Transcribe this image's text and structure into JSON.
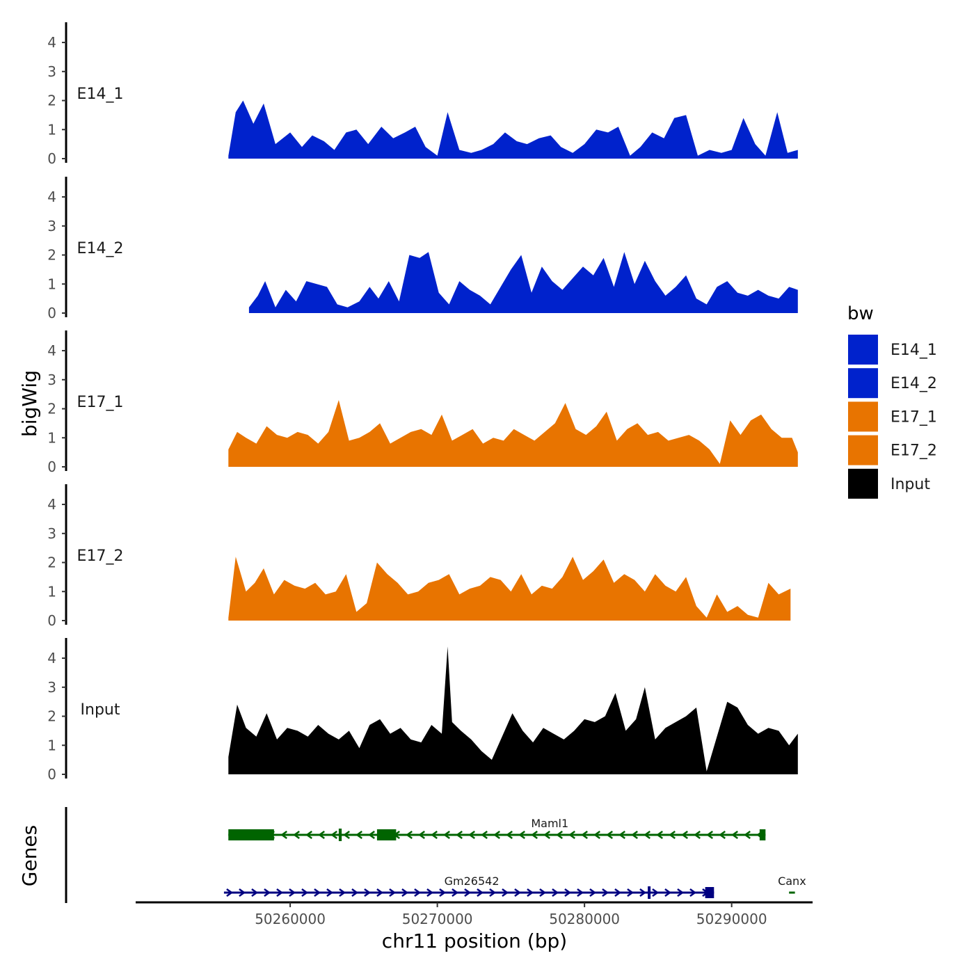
{
  "chart_data": {
    "type": "area",
    "title": "",
    "ylabel": "bigWig",
    "genes_label": "Genes",
    "xlabel": "chr11 position (bp)",
    "xlim": [
      50249500,
      50295500
    ],
    "ylim": [
      0,
      4.6
    ],
    "y_ticks": [
      0,
      1,
      2,
      3,
      4
    ],
    "x_ticks": [
      50260000,
      50270000,
      50280000,
      50290000
    ],
    "x_tick_labels": [
      "50260000",
      "50270000",
      "50280000",
      "50290000"
    ],
    "legend": {
      "title": "bw",
      "placement": "right",
      "entries": [
        {
          "label": "E14_1",
          "color": "#0022CC"
        },
        {
          "label": "E14_2",
          "color": "#0022CC"
        },
        {
          "label": "E17_1",
          "color": "#E87400"
        },
        {
          "label": "E17_2",
          "color": "#E87400"
        },
        {
          "label": "Input",
          "color": "#000000"
        }
      ]
    },
    "series": [
      {
        "name": "E14_1",
        "color": "#0022CC",
        "x": [
          50255800,
          50256300,
          50256800,
          50257500,
          50258200,
          50259000,
          50260000,
          50260800,
          50261500,
          50262300,
          50263000,
          50263800,
          50264500,
          50265300,
          50266200,
          50267000,
          50267800,
          50268500,
          50269200,
          50270000,
          50270700,
          50271500,
          50272300,
          50273000,
          50273800,
          50274600,
          50275400,
          50276100,
          50276900,
          50277700,
          50278400,
          50279200,
          50280000,
          50280800,
          50281600,
          50282300,
          50283100,
          50283800,
          50284600,
          50285400,
          50286100,
          50286900,
          50287700,
          50288500,
          50289300,
          50290000,
          50290800,
          50291600,
          50292300,
          50293100,
          50293800,
          50294500
        ],
        "values": [
          0.1,
          1.6,
          2.0,
          1.2,
          1.9,
          0.5,
          0.9,
          0.4,
          0.8,
          0.6,
          0.3,
          0.9,
          1.0,
          0.5,
          1.1,
          0.7,
          0.9,
          1.1,
          0.4,
          0.1,
          1.6,
          0.3,
          0.2,
          0.3,
          0.5,
          0.9,
          0.6,
          0.5,
          0.7,
          0.8,
          0.4,
          0.2,
          0.5,
          1.0,
          0.9,
          1.1,
          0.1,
          0.4,
          0.9,
          0.7,
          1.4,
          1.5,
          0.1,
          0.3,
          0.2,
          0.3,
          1.4,
          0.5,
          0.1,
          1.6,
          0.2,
          0.3
        ]
      },
      {
        "name": "E14_2",
        "color": "#0022CC",
        "x": [
          50257200,
          50257800,
          50258300,
          50259000,
          50259700,
          50260400,
          50261100,
          50261800,
          50262500,
          50263200,
          50263900,
          50264700,
          50265400,
          50266000,
          50266700,
          50267400,
          50268100,
          50268800,
          50269400,
          50270100,
          50270800,
          50271500,
          50272200,
          50272900,
          50273600,
          50274300,
          50275000,
          50275700,
          50276400,
          50277100,
          50277800,
          50278500,
          50279200,
          50279900,
          50280600,
          50281300,
          50282000,
          50282700,
          50283400,
          50284100,
          50284800,
          50285500,
          50286200,
          50286900,
          50287600,
          50288300,
          50289000,
          50289700,
          50290400,
          50291100,
          50291800,
          50292500,
          50293200,
          50293900,
          50294500
        ],
        "values": [
          0.2,
          0.6,
          1.1,
          0.2,
          0.8,
          0.4,
          1.1,
          1.0,
          0.9,
          0.3,
          0.2,
          0.4,
          0.9,
          0.5,
          1.1,
          0.4,
          2.0,
          1.9,
          2.1,
          0.7,
          0.3,
          1.1,
          0.8,
          0.6,
          0.3,
          0.9,
          1.5,
          2.0,
          0.7,
          1.6,
          1.1,
          0.8,
          1.2,
          1.6,
          1.3,
          1.9,
          0.9,
          2.1,
          1.0,
          1.8,
          1.1,
          0.6,
          0.9,
          1.3,
          0.5,
          0.3,
          0.9,
          1.1,
          0.7,
          0.6,
          0.8,
          0.6,
          0.5,
          0.9,
          0.8
        ]
      },
      {
        "name": "E17_1",
        "color": "#E87400",
        "x": [
          50255800,
          50256400,
          50257000,
          50257700,
          50258400,
          50259100,
          50259800,
          50260500,
          50261200,
          50261900,
          50262600,
          50263300,
          50264000,
          50264700,
          50265400,
          50266100,
          50266800,
          50267500,
          50268200,
          50268900,
          50269600,
          50270300,
          50271000,
          50271700,
          50272400,
          50273100,
          50273800,
          50274500,
          50275200,
          50275900,
          50276600,
          50277300,
          50278000,
          50278700,
          50279400,
          50280100,
          50280800,
          50281500,
          50282200,
          50282900,
          50283600,
          50284300,
          50285000,
          50285700,
          50286400,
          50287100,
          50287800,
          50288500,
          50289200,
          50289900,
          50290600,
          50291300,
          50292000,
          50292700,
          50293400,
          50294100,
          50294500
        ],
        "values": [
          0.6,
          1.2,
          1.0,
          0.8,
          1.4,
          1.1,
          1.0,
          1.2,
          1.1,
          0.8,
          1.2,
          2.3,
          0.9,
          1.0,
          1.2,
          1.5,
          0.8,
          1.0,
          1.2,
          1.3,
          1.1,
          1.8,
          0.9,
          1.1,
          1.3,
          0.8,
          1.0,
          0.9,
          1.3,
          1.1,
          0.9,
          1.2,
          1.5,
          2.2,
          1.3,
          1.1,
          1.4,
          1.9,
          0.9,
          1.3,
          1.5,
          1.1,
          1.2,
          0.9,
          1.0,
          1.1,
          0.9,
          0.6,
          0.1,
          1.6,
          1.1,
          1.6,
          1.8,
          1.3,
          1.0,
          1.0,
          0.5
        ]
      },
      {
        "name": "E17_2",
        "color": "#E87400",
        "x": [
          50255800,
          50256300,
          50257000,
          50257600,
          50258200,
          50258900,
          50259600,
          50260300,
          50261000,
          50261700,
          50262400,
          50263100,
          50263800,
          50264500,
          50265200,
          50265900,
          50266600,
          50267300,
          50268000,
          50268700,
          50269400,
          50270100,
          50270800,
          50271500,
          50272200,
          50272900,
          50273600,
          50274300,
          50275000,
          50275700,
          50276400,
          50277100,
          50277800,
          50278500,
          50279200,
          50279900,
          50280600,
          50281300,
          50282000,
          50282700,
          50283400,
          50284100,
          50284800,
          50285500,
          50286200,
          50286900,
          50287600,
          50288300,
          50289000,
          50289700,
          50290400,
          50291100,
          50291800,
          50292500,
          50293200,
          50294000
        ],
        "values": [
          0.1,
          2.2,
          1.0,
          1.3,
          1.8,
          0.9,
          1.4,
          1.2,
          1.1,
          1.3,
          0.9,
          1.0,
          1.6,
          0.3,
          0.6,
          2.0,
          1.6,
          1.3,
          0.9,
          1.0,
          1.3,
          1.4,
          1.6,
          0.9,
          1.1,
          1.2,
          1.5,
          1.4,
          1.0,
          1.6,
          0.9,
          1.2,
          1.1,
          1.5,
          2.2,
          1.4,
          1.7,
          2.1,
          1.3,
          1.6,
          1.4,
          1.0,
          1.6,
          1.2,
          1.0,
          1.5,
          0.5,
          0.1,
          0.9,
          0.3,
          0.5,
          0.2,
          0.1,
          1.3,
          0.9,
          1.1
        ]
      },
      {
        "name": "Input",
        "color": "#000000",
        "x": [
          50255800,
          50256400,
          50257000,
          50257700,
          50258400,
          50259100,
          50259800,
          50260500,
          50261200,
          50261900,
          50262600,
          50263300,
          50264000,
          50264700,
          50265400,
          50266100,
          50266800,
          50267500,
          50268200,
          50268900,
          50269600,
          50270300,
          50270700,
          50271000,
          50271600,
          50272300,
          50273000,
          50273700,
          50274400,
          50275100,
          50275800,
          50276500,
          50277200,
          50277900,
          50278600,
          50279300,
          50280000,
          50280700,
          50281400,
          50282100,
          50282800,
          50283500,
          50284100,
          50284800,
          50285500,
          50286200,
          50286900,
          50287600,
          50288300,
          50289000,
          50289700,
          50290400,
          50291100,
          50291800,
          50292500,
          50293200,
          50293900,
          50294500
        ],
        "values": [
          0.6,
          2.4,
          1.6,
          1.3,
          2.1,
          1.2,
          1.6,
          1.5,
          1.3,
          1.7,
          1.4,
          1.2,
          1.5,
          0.9,
          1.7,
          1.9,
          1.4,
          1.6,
          1.2,
          1.1,
          1.7,
          1.4,
          4.4,
          1.8,
          1.5,
          1.2,
          0.8,
          0.5,
          1.3,
          2.1,
          1.5,
          1.1,
          1.6,
          1.4,
          1.2,
          1.5,
          1.9,
          1.8,
          2.0,
          2.8,
          1.5,
          1.9,
          3.0,
          1.2,
          1.6,
          1.8,
          2.0,
          2.3,
          0.1,
          1.3,
          2.5,
          2.3,
          1.7,
          1.4,
          1.6,
          1.5,
          1.0,
          1.4
        ]
      }
    ],
    "genes": [
      {
        "name": "Maml1",
        "color": "#006400",
        "strand": "-",
        "start": 50255800,
        "end": 50292300,
        "exons": [
          [
            50255800,
            50258900
          ],
          [
            50263300,
            50263500
          ],
          [
            50265900,
            50267200
          ],
          [
            50291900,
            50292300
          ]
        ]
      },
      {
        "name": "Gm26542",
        "color": "#000080",
        "strand": "+",
        "start": 50255500,
        "end": 50288800,
        "exons": [
          [
            50284300,
            50284400
          ],
          [
            50288200,
            50288800
          ]
        ]
      },
      {
        "name": "Canx",
        "color": "#006400",
        "strand": "-",
        "start": 50293900,
        "end": 50294300,
        "exons": []
      }
    ]
  }
}
